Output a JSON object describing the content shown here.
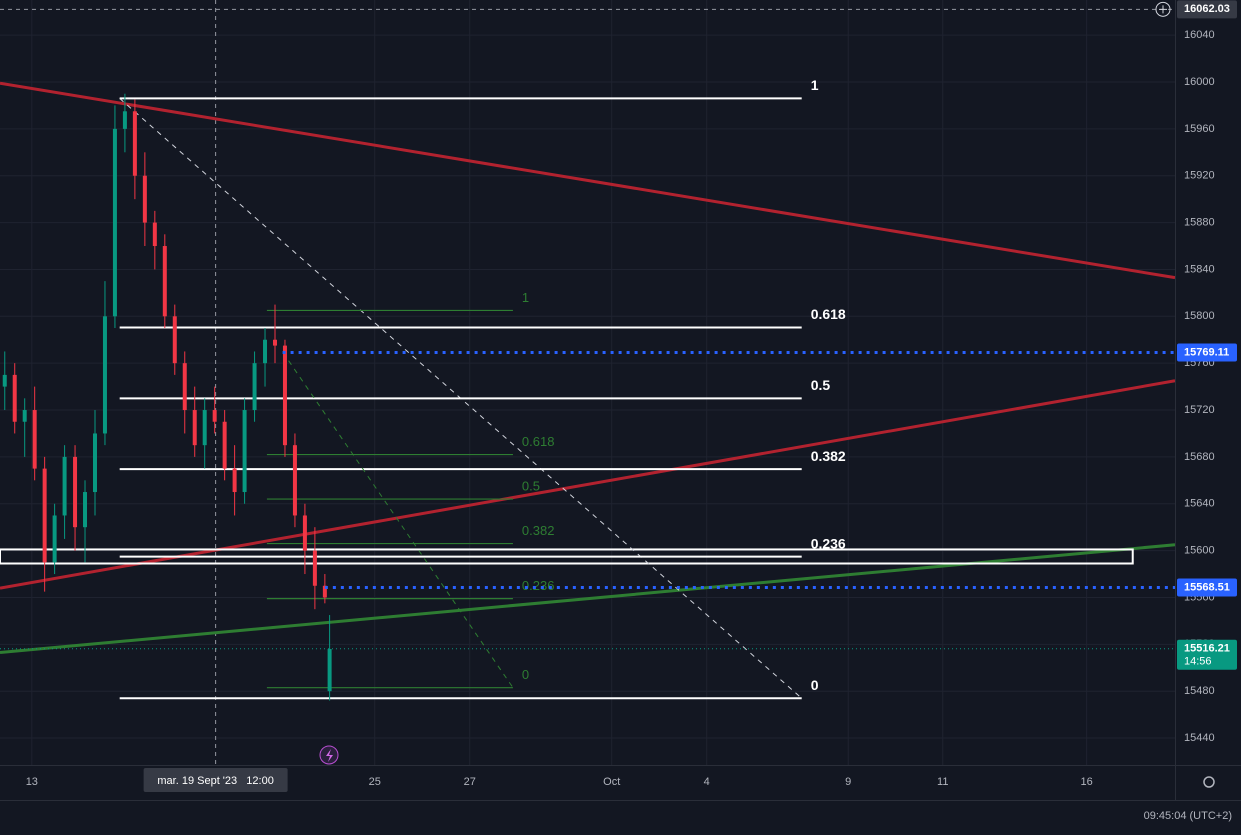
{
  "chart_data": {
    "type": "candlestick",
    "up_color": "#089981",
    "down_color": "#f23645",
    "xlim": [
      -0.67,
      24.07
    ],
    "ylim": [
      15417,
      16070
    ],
    "xticks": [
      {
        "value": 0,
        "label": "13"
      },
      {
        "value": 7.22,
        "label": "25"
      },
      {
        "value": 9.22,
        "label": "27"
      },
      {
        "value": 12.21,
        "label": "Oct"
      },
      {
        "value": 14.21,
        "label": "4"
      },
      {
        "value": 17.19,
        "label": "9"
      },
      {
        "value": 19.18,
        "label": "11"
      },
      {
        "value": 22.21,
        "label": "16"
      }
    ],
    "yticks": [
      15440,
      15480,
      15520,
      15560,
      15600,
      15640,
      15680,
      15720,
      15760,
      15800,
      15840,
      15880,
      15920,
      15960,
      16000,
      16040
    ],
    "grid": true,
    "candles": {
      "x": [
        -0.57,
        -0.36,
        -0.15,
        0.06,
        0.27,
        0.48,
        0.69,
        0.91,
        1.12,
        1.33,
        1.54,
        1.75,
        1.96,
        2.17,
        2.38,
        2.59,
        2.8,
        3.01,
        3.22,
        3.43,
        3.64,
        3.85,
        4.06,
        4.27,
        4.48,
        4.69,
        4.91,
        5.12,
        5.33,
        5.54,
        5.75,
        5.96,
        6.17,
        6.27
      ],
      "open": [
        15740,
        15750,
        15710,
        15720,
        15670,
        15590,
        15630,
        15680,
        15620,
        15650,
        15700,
        15800,
        15960,
        15975,
        15920,
        15880,
        15860,
        15800,
        15760,
        15720,
        15690,
        15720,
        15710,
        15670,
        15650,
        15720,
        15760,
        15780,
        15775,
        15690,
        15630,
        15600,
        15570,
        15480
      ],
      "high": [
        15770,
        15760,
        15730,
        15740,
        15680,
        15640,
        15690,
        15690,
        15660,
        15720,
        15830,
        15980,
        15990,
        15985,
        15940,
        15890,
        15870,
        15810,
        15770,
        15740,
        15730,
        15740,
        15720,
        15690,
        15730,
        15770,
        15790,
        15810,
        15780,
        15700,
        15640,
        15620,
        15580,
        15545
      ],
      "low": [
        15720,
        15700,
        15680,
        15660,
        15565,
        15580,
        15610,
        15600,
        15590,
        15630,
        15690,
        15790,
        15940,
        15900,
        15860,
        15840,
        15790,
        15750,
        15700,
        15680,
        15670,
        15700,
        15660,
        15630,
        15640,
        15710,
        15740,
        15760,
        15680,
        15620,
        15580,
        15550,
        15555,
        15472
      ],
      "close": [
        15750,
        15710,
        15720,
        15670,
        15590,
        15630,
        15680,
        15620,
        15650,
        15700,
        15800,
        15960,
        15975,
        15920,
        15880,
        15860,
        15800,
        15760,
        15720,
        15690,
        15720,
        15710,
        15670,
        15650,
        15720,
        15760,
        15780,
        15775,
        15690,
        15630,
        15600,
        15570,
        15560,
        15516
      ]
    },
    "trend_lines": [
      {
        "color": "#b2222f",
        "x": [
          -0.67,
          24.07
        ],
        "y": [
          15999,
          15833
        ]
      },
      {
        "color": "#b2222f",
        "x": [
          -0.67,
          24.07
        ],
        "y": [
          15568,
          15745
        ]
      },
      {
        "color": "#2e7d32",
        "x": [
          -0.67,
          24.07
        ],
        "y": [
          15513,
          15605
        ]
      }
    ],
    "rectangle": {
      "x": [
        -0.67,
        23.18
      ],
      "y": [
        15589,
        15601
      ]
    },
    "fibs": [
      {
        "color": "#ffffff",
        "high": 15986,
        "low": 15474,
        "x": [
          1.85,
          16.21
        ],
        "levels": [
          1,
          0.618,
          0.5,
          0.382,
          0.236,
          0
        ]
      },
      {
        "color": "#2e7d32",
        "high": 15805,
        "low": 15483,
        "x": [
          4.95,
          10.13
        ],
        "levels": [
          1,
          0.618,
          0.5,
          0.382,
          0.236,
          0
        ]
      }
    ],
    "price_lines": [
      {
        "price": 15769.11,
        "from_x": 5.28,
        "color": "#2962ff"
      },
      {
        "price": 15568.51,
        "from_x": 6.17,
        "color": "#2962ff"
      }
    ],
    "last_price": {
      "price": 15516.21,
      "countdown": "14:56",
      "color": "#089981"
    },
    "crosshair": {
      "x": 3.87,
      "price": 16062.03,
      "label": "mar. 19 Sept '23   12:00"
    },
    "clock": "09:45:04 (UTC+2)"
  }
}
